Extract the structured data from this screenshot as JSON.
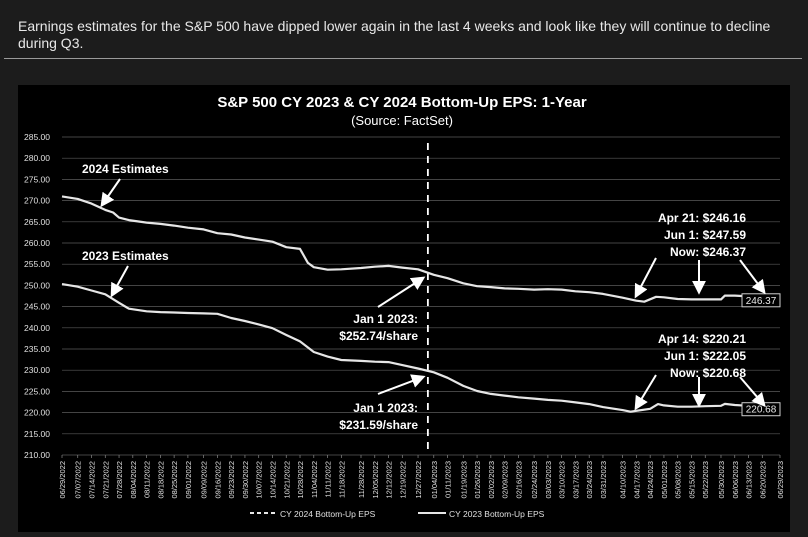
{
  "caption": "Earnings estimates for the S&P 500 have dipped lower again in the last 4 weeks and look like they will continue to decline during Q3.",
  "colors": {
    "page_background": "#1c1c1c",
    "chart_background": "#000000",
    "line": "#e6e6e6",
    "text": "#ffffff"
  },
  "chart_data": {
    "type": "line",
    "title": "S&P 500 CY 2023 & CY 2024 Bottom-Up EPS: 1-Year",
    "subtitle": "(Source: FactSet)",
    "ylim": [
      210,
      285
    ],
    "yticks": [
      "285.00",
      "280.00",
      "275.00",
      "270.00",
      "265.00",
      "260.00",
      "255.00",
      "250.00",
      "245.00",
      "240.00",
      "235.00",
      "230.00",
      "225.00",
      "220.00",
      "215.00",
      "210.00"
    ],
    "x_start": "06/29/2022",
    "x_end": "06/29/2023",
    "xticks": [
      "06/29/2022",
      "07/07/2022",
      "07/14/2022",
      "07/21/2022",
      "07/28/2022",
      "08/04/2022",
      "08/11/2022",
      "08/18/2022",
      "08/25/2022",
      "09/01/2022",
      "09/09/2022",
      "09/16/2022",
      "09/23/2022",
      "09/30/2022",
      "10/07/2022",
      "10/14/2022",
      "10/21/2022",
      "10/28/2022",
      "11/04/2022",
      "11/11/2022",
      "11/18/2022",
      "11/28/2022",
      "12/05/2022",
      "12/12/2022",
      "12/19/2022",
      "12/27/2022",
      "01/04/2023",
      "01/11/2023",
      "01/19/2023",
      "01/26/2023",
      "02/02/2023",
      "02/09/2023",
      "02/16/2023",
      "02/24/2023",
      "03/03/2023",
      "03/10/2023",
      "03/17/2023",
      "03/24/2023",
      "03/31/2023",
      "04/10/2023",
      "04/17/2023",
      "04/24/2023",
      "05/01/2023",
      "05/08/2023",
      "05/15/2023",
      "05/22/2023",
      "05/30/2023",
      "06/06/2023",
      "06/13/2023",
      "06/20/2023",
      "06/29/2023"
    ],
    "divider_x": "01/01/2023",
    "legend_position": "bottom",
    "grid": true,
    "series": [
      {
        "name": "CY 2024 Bottom-Up EPS",
        "dash": "dashed",
        "end_label": "246.37",
        "points": [
          [
            "06/29/2022",
            271.0
          ],
          [
            "07/07/2022",
            270.4
          ],
          [
            "07/14/2022",
            269.3
          ],
          [
            "07/21/2022",
            267.8
          ],
          [
            "07/25/2022",
            267.2
          ],
          [
            "07/28/2022",
            266.0
          ],
          [
            "08/02/2022",
            265.4
          ],
          [
            "08/11/2022",
            264.8
          ],
          [
            "08/18/2022",
            264.5
          ],
          [
            "08/25/2022",
            264.1
          ],
          [
            "09/01/2022",
            263.6
          ],
          [
            "09/09/2022",
            263.2
          ],
          [
            "09/16/2022",
            262.3
          ],
          [
            "09/23/2022",
            262.0
          ],
          [
            "09/30/2022",
            261.3
          ],
          [
            "10/07/2022",
            260.8
          ],
          [
            "10/14/2022",
            260.3
          ],
          [
            "10/21/2022",
            259.0
          ],
          [
            "10/28/2022",
            258.6
          ],
          [
            "11/01/2022",
            255.3
          ],
          [
            "11/04/2022",
            254.3
          ],
          [
            "11/11/2022",
            253.7
          ],
          [
            "11/18/2022",
            253.8
          ],
          [
            "11/28/2022",
            254.1
          ],
          [
            "12/05/2022",
            254.4
          ],
          [
            "12/12/2022",
            254.6
          ],
          [
            "12/19/2022",
            254.2
          ],
          [
            "12/27/2022",
            253.8
          ],
          [
            "01/04/2023",
            252.5
          ],
          [
            "01/11/2023",
            251.7
          ],
          [
            "01/19/2023",
            250.5
          ],
          [
            "01/26/2023",
            249.8
          ],
          [
            "02/02/2023",
            249.6
          ],
          [
            "02/09/2023",
            249.3
          ],
          [
            "02/16/2023",
            249.2
          ],
          [
            "02/24/2023",
            249.0
          ],
          [
            "03/03/2023",
            249.1
          ],
          [
            "03/10/2023",
            249.0
          ],
          [
            "03/17/2023",
            248.6
          ],
          [
            "03/24/2023",
            248.4
          ],
          [
            "03/31/2023",
            248.0
          ],
          [
            "04/10/2023",
            247.1
          ],
          [
            "04/17/2023",
            246.4
          ],
          [
            "04/21/2023",
            246.16
          ],
          [
            "04/27/2023",
            247.3
          ],
          [
            "05/01/2023",
            247.2
          ],
          [
            "05/08/2023",
            246.8
          ],
          [
            "05/15/2023",
            246.7
          ],
          [
            "05/22/2023",
            246.7
          ],
          [
            "05/30/2023",
            246.7
          ],
          [
            "06/01/2023",
            247.59
          ],
          [
            "06/06/2023",
            247.6
          ],
          [
            "06/13/2023",
            247.4
          ],
          [
            "06/20/2023",
            247.0
          ],
          [
            "06/29/2023",
            246.37
          ]
        ]
      },
      {
        "name": "CY 2023 Bottom-Up EPS",
        "dash": "solid",
        "end_label": "220.68",
        "points": [
          [
            "06/29/2022",
            250.3
          ],
          [
            "07/07/2022",
            249.7
          ],
          [
            "07/14/2022",
            248.8
          ],
          [
            "07/21/2022",
            247.9
          ],
          [
            "07/28/2022",
            245.9
          ],
          [
            "08/02/2022",
            244.5
          ],
          [
            "08/11/2022",
            243.9
          ],
          [
            "08/18/2022",
            243.7
          ],
          [
            "08/25/2022",
            243.6
          ],
          [
            "09/01/2022",
            243.5
          ],
          [
            "09/09/2022",
            243.4
          ],
          [
            "09/16/2022",
            243.3
          ],
          [
            "09/23/2022",
            242.3
          ],
          [
            "09/30/2022",
            241.6
          ],
          [
            "10/07/2022",
            240.8
          ],
          [
            "10/14/2022",
            239.9
          ],
          [
            "10/21/2022",
            238.3
          ],
          [
            "10/28/2022",
            236.8
          ],
          [
            "11/04/2022",
            234.3
          ],
          [
            "11/11/2022",
            233.2
          ],
          [
            "11/18/2022",
            232.4
          ],
          [
            "11/28/2022",
            232.2
          ],
          [
            "12/05/2022",
            232.0
          ],
          [
            "12/12/2022",
            231.9
          ],
          [
            "12/19/2022",
            231.2
          ],
          [
            "12/27/2022",
            230.4
          ],
          [
            "01/04/2023",
            229.5
          ],
          [
            "01/11/2023",
            228.2
          ],
          [
            "01/19/2023",
            226.3
          ],
          [
            "01/26/2023",
            225.1
          ],
          [
            "02/02/2023",
            224.4
          ],
          [
            "02/09/2023",
            224.0
          ],
          [
            "02/16/2023",
            223.6
          ],
          [
            "02/24/2023",
            223.3
          ],
          [
            "03/03/2023",
            223.0
          ],
          [
            "03/10/2023",
            222.8
          ],
          [
            "03/17/2023",
            222.4
          ],
          [
            "03/24/2023",
            222.0
          ],
          [
            "03/31/2023",
            221.3
          ],
          [
            "04/10/2023",
            220.6
          ],
          [
            "04/14/2023",
            220.21
          ],
          [
            "04/24/2023",
            220.9
          ],
          [
            "04/28/2023",
            222.0
          ],
          [
            "05/01/2023",
            221.7
          ],
          [
            "05/08/2023",
            221.4
          ],
          [
            "05/15/2023",
            221.4
          ],
          [
            "05/22/2023",
            221.5
          ],
          [
            "05/30/2023",
            221.6
          ],
          [
            "06/01/2023",
            222.05
          ],
          [
            "06/06/2023",
            221.8
          ],
          [
            "06/13/2023",
            221.6
          ],
          [
            "06/20/2023",
            221.3
          ],
          [
            "06/29/2023",
            220.68
          ]
        ]
      }
    ],
    "annotations": [
      {
        "id": "label-2024-estimates",
        "text": "2024 Estimates"
      },
      {
        "id": "label-2023-estimates",
        "text": "2023 Estimates"
      },
      {
        "id": "callout-2024-jan",
        "lines": [
          "Jan 1 2023:",
          "$252.74/share"
        ]
      },
      {
        "id": "callout-2023-jan",
        "lines": [
          "Jan 1 2023:",
          "$231.59/share"
        ]
      },
      {
        "id": "callout-2024-recent",
        "lines": [
          "Apr 21: $246.16",
          "Jun 1: $247.59",
          "Now: $246.37"
        ]
      },
      {
        "id": "callout-2023-recent",
        "lines": [
          "Apr 14: $220.21",
          "Jun 1: $222.05",
          "Now: $220.68"
        ]
      }
    ]
  }
}
